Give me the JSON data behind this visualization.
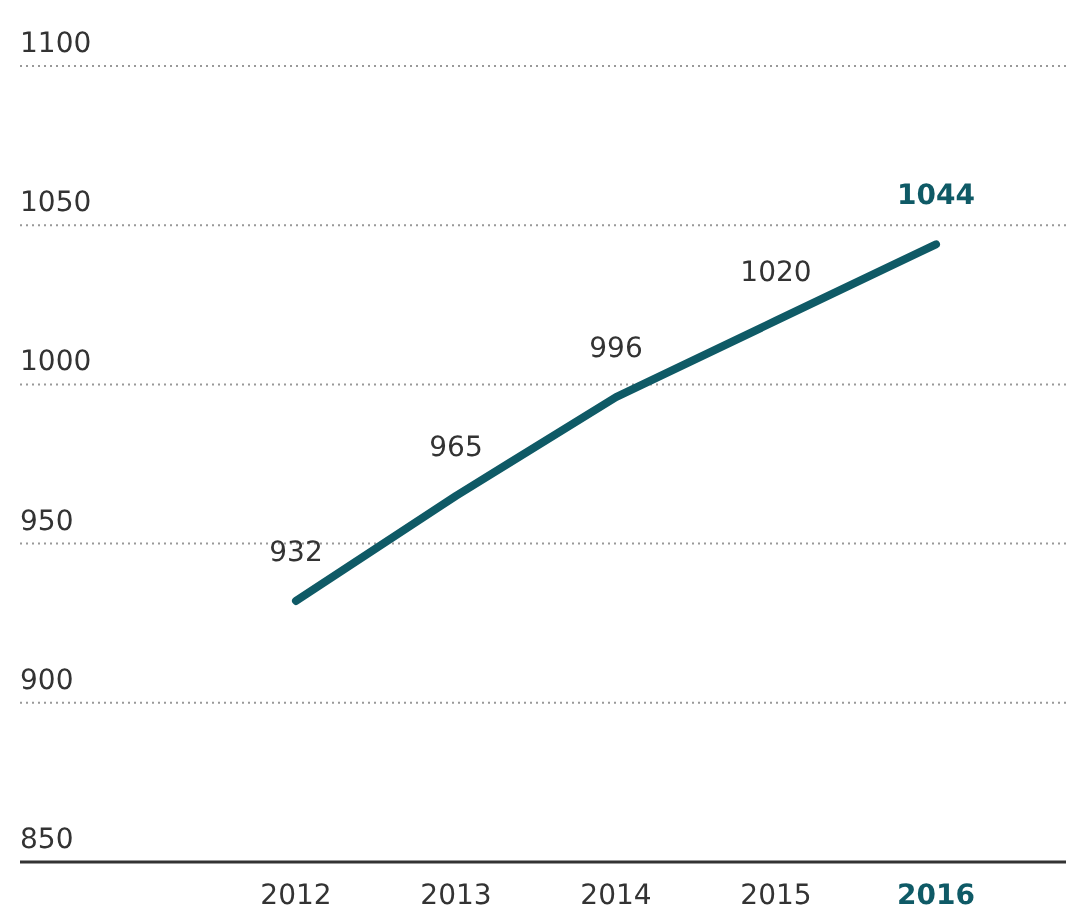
{
  "chart_data": {
    "type": "line",
    "categories": [
      "2012",
      "2013",
      "2014",
      "2015",
      "2016"
    ],
    "series": [
      {
        "color": "#0f5a66",
        "values": [
          932,
          965,
          996,
          1020,
          1044
        ]
      }
    ],
    "ylim": [
      850,
      1100
    ],
    "yticks": [
      850,
      900,
      950,
      1000,
      1050,
      1100
    ],
    "grid": "y",
    "data_labels": true,
    "marker": "none",
    "line_style": "solid"
  }
}
